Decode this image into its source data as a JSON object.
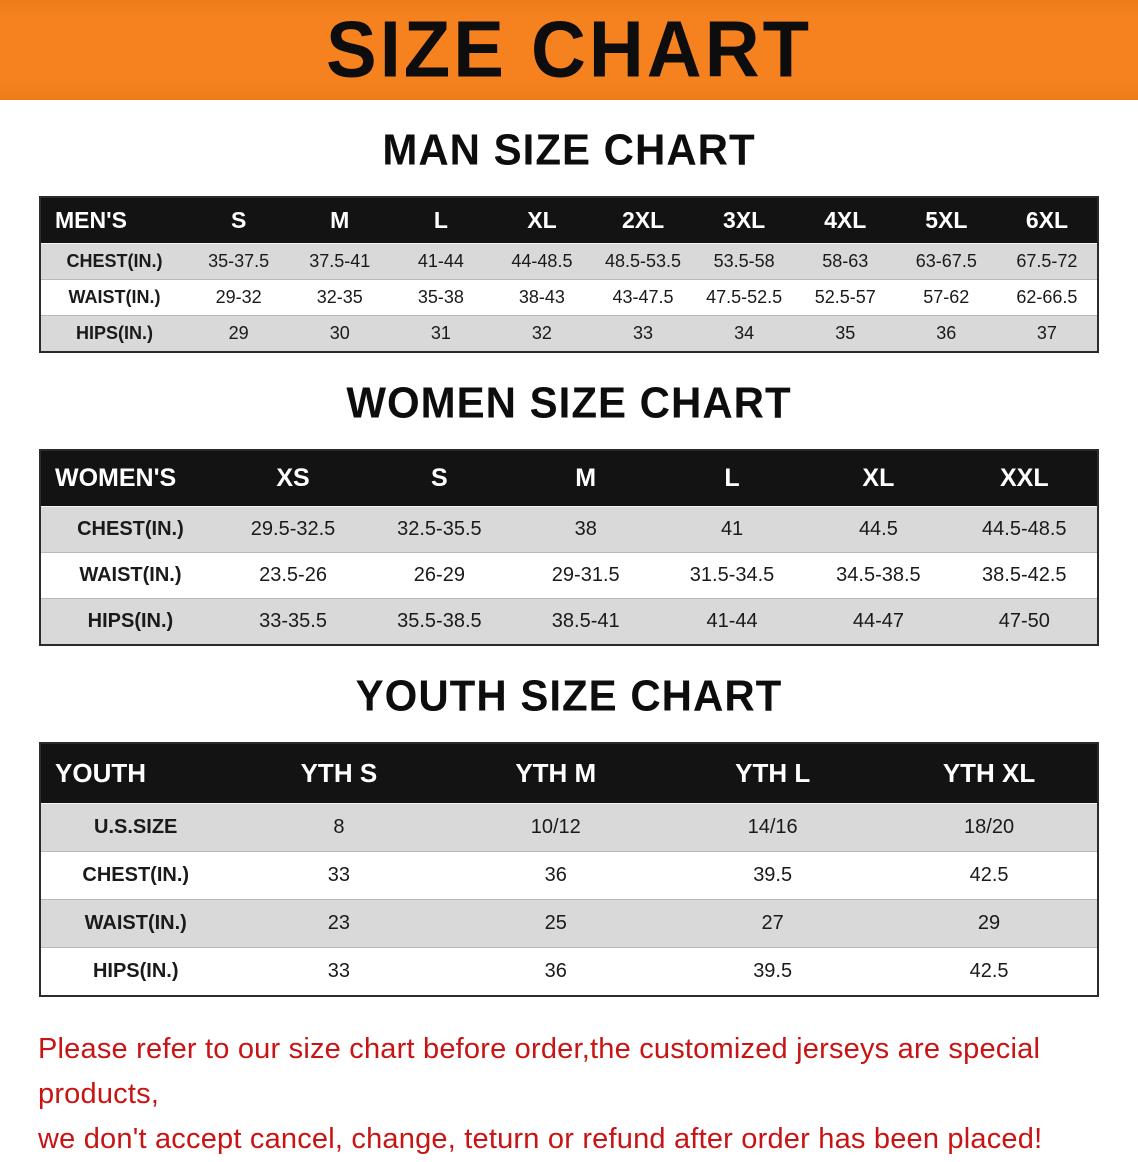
{
  "banner": {
    "title": "SIZE CHART"
  },
  "colors": {
    "banner_bg": "#F5821F",
    "header_row_bg": "#131313",
    "row_shade": "#D9D9D9",
    "footer_text": "#C81414"
  },
  "sections": [
    {
      "id": "men",
      "heading": "MAN SIZE CHART",
      "table": {
        "header": [
          "MEN'S",
          "S",
          "M",
          "L",
          "XL",
          "2XL",
          "3XL",
          "4XL",
          "5XL",
          "6XL"
        ],
        "rows": [
          [
            "CHEST(IN.)",
            "35-37.5",
            "37.5-41",
            "41-44",
            "44-48.5",
            "48.5-53.5",
            "53.5-58",
            "58-63",
            "63-67.5",
            "67.5-72"
          ],
          [
            "WAIST(IN.)",
            "29-32",
            "32-35",
            "35-38",
            "38-43",
            "43-47.5",
            "47.5-52.5",
            "52.5-57",
            "57-62",
            "62-66.5"
          ],
          [
            "HIPS(IN.)",
            "29",
            "30",
            "31",
            "32",
            "33",
            "34",
            "35",
            "36",
            "37"
          ]
        ]
      }
    },
    {
      "id": "women",
      "heading": "WOMEN SIZE CHART",
      "table": {
        "header": [
          "WOMEN'S",
          "XS",
          "S",
          "M",
          "L",
          "XL",
          "XXL"
        ],
        "rows": [
          [
            "CHEST(IN.)",
            "29.5-32.5",
            "32.5-35.5",
            "38",
            "41",
            "44.5",
            "44.5-48.5"
          ],
          [
            "WAIST(IN.)",
            "23.5-26",
            "26-29",
            "29-31.5",
            "31.5-34.5",
            "34.5-38.5",
            "38.5-42.5"
          ],
          [
            "HIPS(IN.)",
            "33-35.5",
            "35.5-38.5",
            "38.5-41",
            "41-44",
            "44-47",
            "47-50"
          ]
        ]
      }
    },
    {
      "id": "youth",
      "heading": "YOUTH SIZE CHART",
      "table": {
        "header": [
          "YOUTH",
          "YTH S",
          "YTH M",
          "YTH L",
          "YTH XL"
        ],
        "rows": [
          [
            "U.S.SIZE",
            "8",
            "10/12",
            "14/16",
            "18/20"
          ],
          [
            "CHEST(IN.)",
            "33",
            "36",
            "39.5",
            "42.5"
          ],
          [
            "WAIST(IN.)",
            "23",
            "25",
            "27",
            "29"
          ],
          [
            "HIPS(IN.)",
            "33",
            "36",
            "39.5",
            "42.5"
          ]
        ]
      }
    }
  ],
  "footer": {
    "lines": [
      "Please refer to our size chart before order,the customized jerseys are special products,",
      "we don't accept cancel, change, teturn or refund after order has been placed!"
    ]
  }
}
